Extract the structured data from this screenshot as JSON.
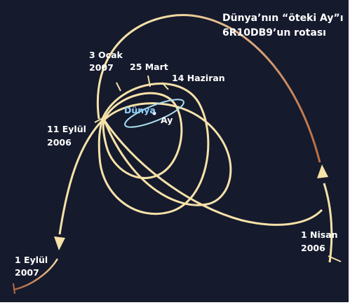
{
  "title": {
    "line1": "Dünya’nın “öteki Ay”ı",
    "line2": "6R10DB9’un  rotası"
  },
  "labels": {
    "apr2006": [
      "1 Nisan",
      "2006"
    ],
    "sep2006": [
      "11 Eylül",
      "2006"
    ],
    "jan2007": [
      "3 Ocak",
      "2007"
    ],
    "mar2007": "25 Mart",
    "jun2007": "14 Haziran",
    "sep2007": [
      "1 Eylül",
      "2007"
    ],
    "earth": "Dünya",
    "moon": "Ay"
  },
  "colors": {
    "background": "#151a2d",
    "orbit": "#f6e2a8",
    "orbit_fade": "#b86a40",
    "moon_orbit": "#a9e0f0",
    "earth_label": "#8fd2ff",
    "text": "#ffffff"
  }
}
